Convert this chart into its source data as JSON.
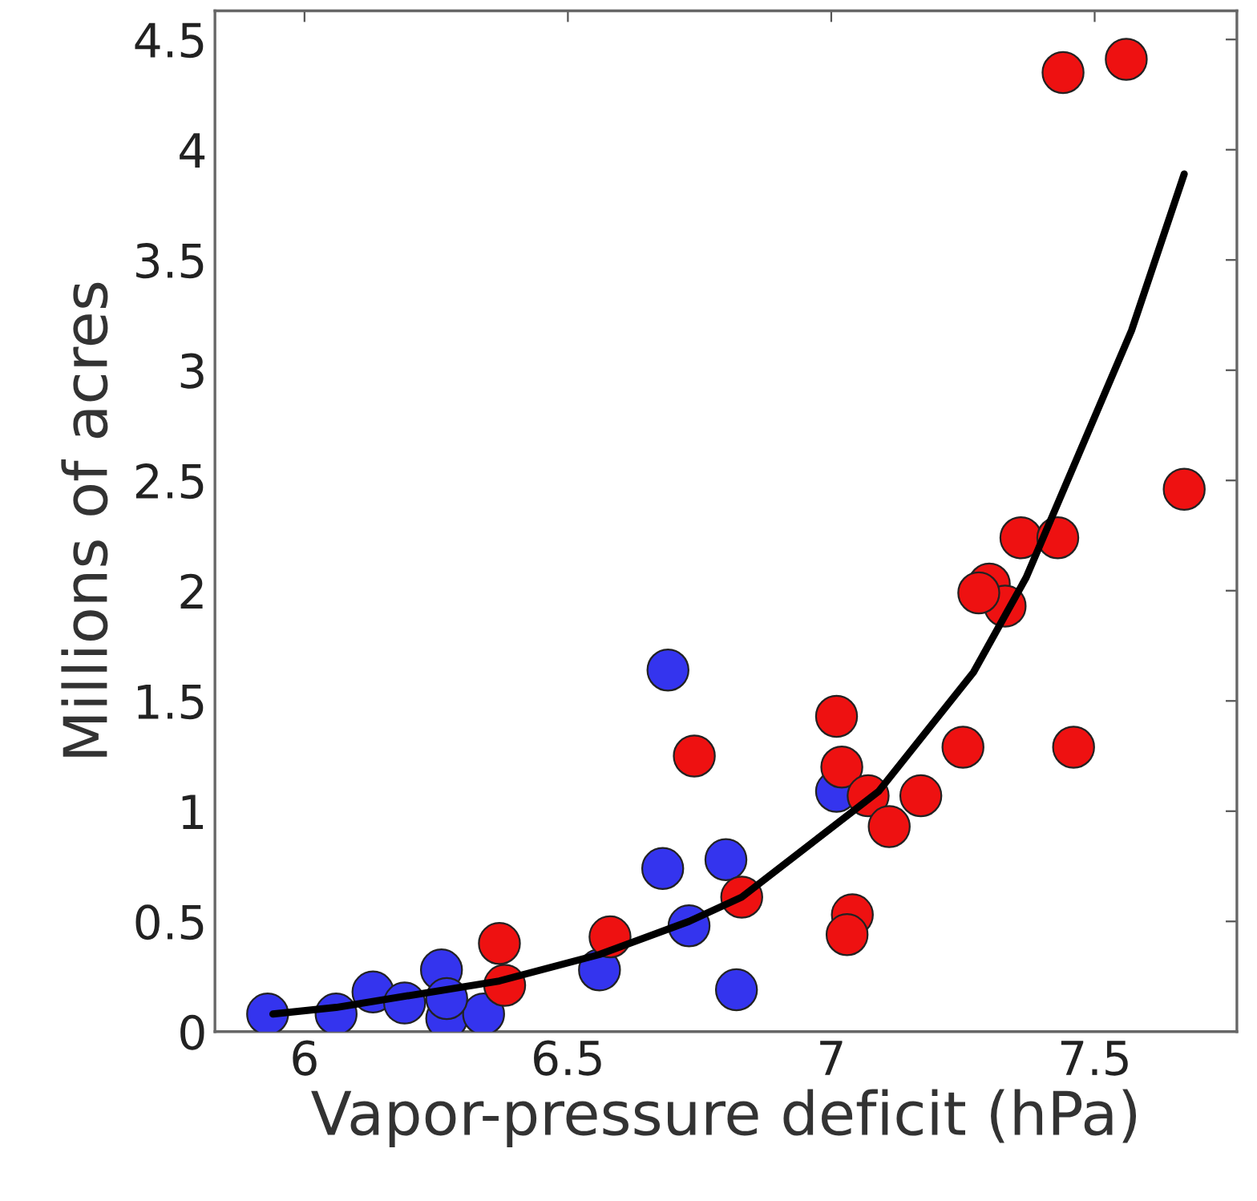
{
  "chart_data": {
    "type": "scatter",
    "xlabel": "Vapor-pressure deficit (hPa)",
    "ylabel": "Millions of acres",
    "xlim": [
      5.83,
      7.77
    ],
    "ylim": [
      0,
      4.63
    ],
    "xticks": [
      6,
      6.5,
      7,
      7.5
    ],
    "yticks": [
      0,
      0.5,
      1,
      1.5,
      2,
      2.5,
      3,
      3.5,
      4,
      4.5
    ],
    "grid": false,
    "marker": "circle",
    "series": [
      {
        "color": "#3434ee",
        "x": [
          5.93,
          6.06,
          6.13,
          6.19,
          6.26,
          6.27,
          6.34,
          6.56,
          6.68,
          6.69,
          6.73,
          6.8,
          6.82,
          7.01,
          6.27
        ],
        "values": [
          0.08,
          0.08,
          0.18,
          0.13,
          0.28,
          0.06,
          0.08,
          0.28,
          0.74,
          1.64,
          0.48,
          0.78,
          0.19,
          1.09,
          0.15
        ]
      },
      {
        "color": "#ee1111",
        "x": [
          6.37,
          6.38,
          6.58,
          6.74,
          6.83,
          7.01,
          7.02,
          7.07,
          7.11,
          7.17,
          7.25,
          7.46,
          7.04,
          7.03,
          7.3,
          7.33,
          7.36,
          7.43,
          7.44,
          7.56,
          7.67,
          7.28
        ],
        "values": [
          0.4,
          0.21,
          0.43,
          1.25,
          0.61,
          1.43,
          1.2,
          1.07,
          0.93,
          1.07,
          1.29,
          1.29,
          0.53,
          0.44,
          2.03,
          1.93,
          2.24,
          2.24,
          4.35,
          4.41,
          2.46,
          1.99
        ]
      },
      {
        "type": "line",
        "color": "#000000",
        "marker": "none",
        "x": [
          5.94,
          6.06,
          6.37,
          6.56,
          6.73,
          6.83,
          7.09,
          7.27,
          7.37,
          7.57,
          7.67
        ],
        "values": [
          0.08,
          0.11,
          0.23,
          0.35,
          0.5,
          0.61,
          1.09,
          1.63,
          2.06,
          3.18,
          3.89
        ]
      }
    ]
  }
}
